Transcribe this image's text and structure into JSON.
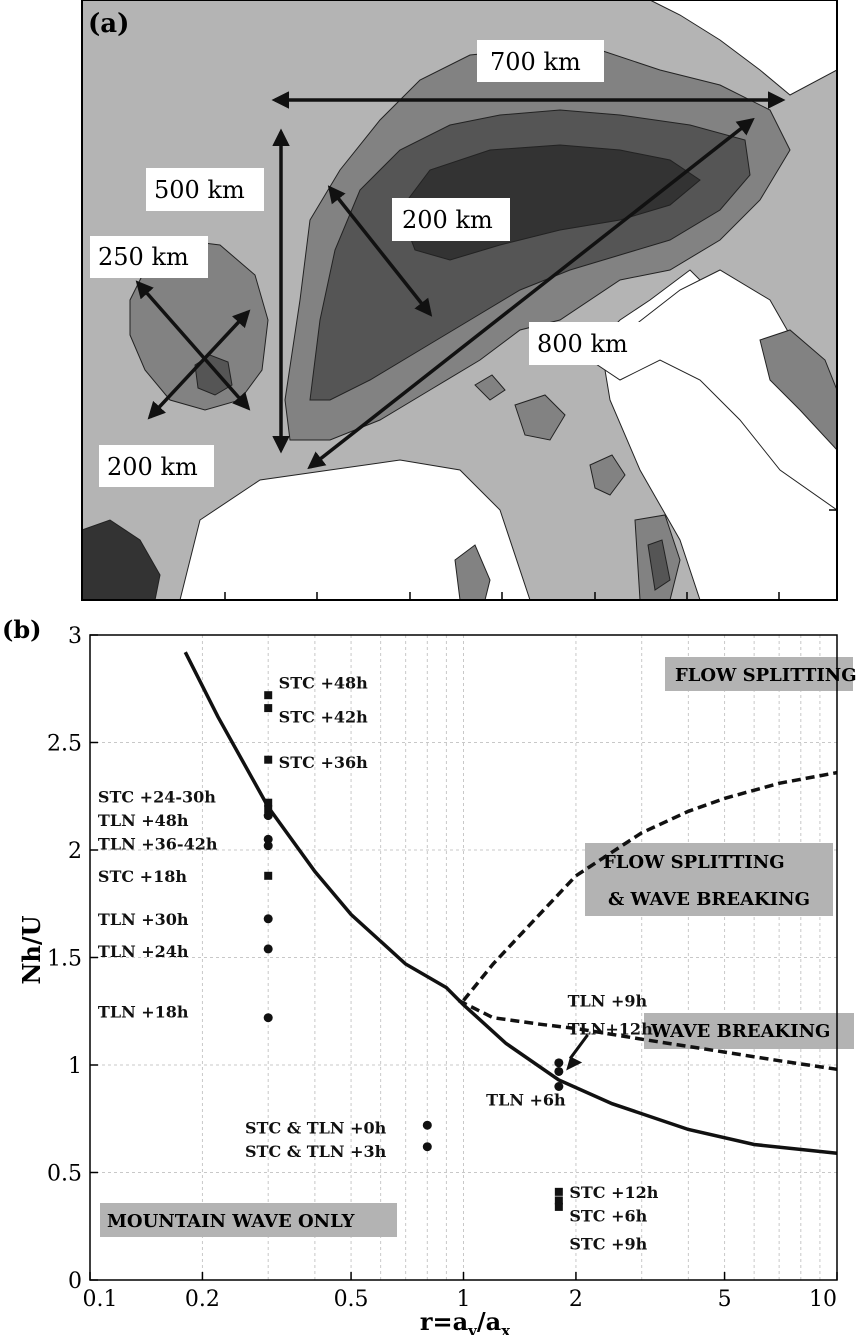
{
  "panel_a": {
    "label": "(a)",
    "colors": {
      "level0": "#ffffff",
      "level1": "#b4b4b4",
      "level2": "#828282",
      "level3": "#555555",
      "level4": "#333333"
    },
    "annotations": [
      {
        "id": "700km",
        "text": "700 km"
      },
      {
        "id": "500km",
        "text": "500 km"
      },
      {
        "id": "200km-a",
        "text": "200 km"
      },
      {
        "id": "250km",
        "text": "250 km"
      },
      {
        "id": "800km",
        "text": "800 km"
      },
      {
        "id": "200km-b",
        "text": "200 km"
      }
    ]
  },
  "panel_b": {
    "label": "(b)",
    "regions": {
      "flow_splitting": "FLOW SPLITTING",
      "flow_splitting_wave_breaking_1": "FLOW SPLITTING",
      "flow_splitting_wave_breaking_2": "& WAVE BREAKING",
      "wave_breaking": "WAVE BREAKING",
      "mountain_wave_only": "MOUNTAIN WAVE ONLY"
    },
    "region_fill": "#b3b3b3"
  },
  "chart_data": {
    "type": "scatter",
    "xscale": "log",
    "xlim": [
      0.1,
      10
    ],
    "ylim": [
      0,
      3
    ],
    "xlabel": "r=a_y/a_x",
    "ylabel": "Nh/U",
    "xticks": [
      0.1,
      0.2,
      0.5,
      1,
      2,
      5,
      10
    ],
    "xtick_labels": [
      "0.1",
      "0.2",
      "0.5",
      "1",
      "2",
      "5",
      "10"
    ],
    "yticks": [
      0,
      0.5,
      1,
      1.5,
      2,
      2.5,
      3
    ],
    "ytick_labels": [
      "0",
      "0.5",
      "1",
      "1.5",
      "2",
      "2.5",
      "3"
    ],
    "grid": true,
    "curves": [
      {
        "style": "solid",
        "x": [
          0.18,
          0.22,
          0.3,
          0.4,
          0.5,
          0.7,
          0.9,
          1.0,
          1.3,
          1.8,
          2.5,
          4.0,
          6.0,
          10.0
        ],
        "y": [
          2.92,
          2.62,
          2.2,
          1.9,
          1.7,
          1.47,
          1.36,
          1.28,
          1.1,
          0.93,
          0.82,
          0.7,
          0.63,
          0.59
        ]
      },
      {
        "style": "dashed",
        "x": [
          1.0,
          1.2,
          1.5,
          2.0,
          3.0,
          4.0,
          5.0,
          7.0,
          10.0
        ],
        "y": [
          1.3,
          1.47,
          1.65,
          1.88,
          2.08,
          2.18,
          2.24,
          2.31,
          2.36
        ]
      },
      {
        "style": "dashed",
        "x": [
          0.97,
          1.2,
          1.6,
          2.0,
          3.0,
          5.0,
          7.0,
          10.0
        ],
        "y": [
          1.3,
          1.22,
          1.19,
          1.17,
          1.12,
          1.06,
          1.02,
          0.98
        ]
      }
    ],
    "points": [
      {
        "group": "STC",
        "marker": "square",
        "x": 0.3,
        "y": 2.72
      },
      {
        "group": "STC",
        "marker": "square",
        "x": 0.3,
        "y": 2.66
      },
      {
        "group": "STC",
        "marker": "square",
        "x": 0.3,
        "y": 2.42
      },
      {
        "group": "STC",
        "marker": "square",
        "x": 0.3,
        "y": 2.22
      },
      {
        "group": "STC",
        "marker": "square",
        "x": 0.3,
        "y": 2.19
      },
      {
        "group": "STC",
        "marker": "square",
        "x": 0.3,
        "y": 1.88
      },
      {
        "group": "TLN",
        "marker": "circle",
        "x": 0.3,
        "y": 2.16
      },
      {
        "group": "TLN",
        "marker": "circle",
        "x": 0.3,
        "y": 2.05
      },
      {
        "group": "TLN",
        "marker": "circle",
        "x": 0.3,
        "y": 2.02
      },
      {
        "group": "TLN",
        "marker": "circle",
        "x": 0.3,
        "y": 1.68
      },
      {
        "group": "TLN",
        "marker": "circle",
        "x": 0.3,
        "y": 1.54
      },
      {
        "group": "TLN",
        "marker": "circle",
        "x": 0.3,
        "y": 1.22
      },
      {
        "group": "STC & TLN",
        "marker": "circle",
        "x": 0.8,
        "y": 0.72
      },
      {
        "group": "STC & TLN",
        "marker": "circle",
        "x": 0.8,
        "y": 0.62
      },
      {
        "group": "TLN",
        "marker": "circle",
        "x": 1.8,
        "y": 1.01
      },
      {
        "group": "TLN",
        "marker": "circle",
        "x": 1.8,
        "y": 0.97
      },
      {
        "group": "TLN",
        "marker": "circle",
        "x": 1.8,
        "y": 0.9
      },
      {
        "group": "STC",
        "marker": "square",
        "x": 1.8,
        "y": 0.41
      },
      {
        "group": "STC",
        "marker": "square",
        "x": 1.8,
        "y": 0.37
      },
      {
        "group": "STC",
        "marker": "square",
        "x": 1.8,
        "y": 0.34
      }
    ],
    "annotations": [
      {
        "text": "STC +48h",
        "x": 0.32,
        "y": 2.78
      },
      {
        "text": "STC +42h",
        "x": 0.32,
        "y": 2.62
      },
      {
        "text": "STC +36h",
        "x": 0.32,
        "y": 2.41
      },
      {
        "text": "STC +24-30h",
        "x": 0.105,
        "y": 2.25
      },
      {
        "text": "TLN +48h",
        "x": 0.105,
        "y": 2.14
      },
      {
        "text": "TLN +36-42h",
        "x": 0.105,
        "y": 2.03
      },
      {
        "text": "STC +18h",
        "x": 0.105,
        "y": 1.88
      },
      {
        "text": "TLN +30h",
        "x": 0.105,
        "y": 1.68
      },
      {
        "text": "TLN +24h",
        "x": 0.105,
        "y": 1.53
      },
      {
        "text": "TLN +18h",
        "x": 0.105,
        "y": 1.25
      },
      {
        "text": "STC & TLN +0h",
        "x": 0.26,
        "y": 0.71
      },
      {
        "text": "STC & TLN +3h",
        "x": 0.26,
        "y": 0.6
      },
      {
        "text": "TLN +9h",
        "x": 1.9,
        "y": 1.3
      },
      {
        "text": "TLN+12h",
        "x": 1.9,
        "y": 1.17
      },
      {
        "text": "TLN +6h",
        "x": 1.15,
        "y": 0.84
      },
      {
        "text": "STC +12h",
        "x": 1.92,
        "y": 0.41
      },
      {
        "text": "STC +6h",
        "x": 1.92,
        "y": 0.3
      },
      {
        "text": "STC +9h",
        "x": 1.92,
        "y": 0.17
      }
    ]
  }
}
